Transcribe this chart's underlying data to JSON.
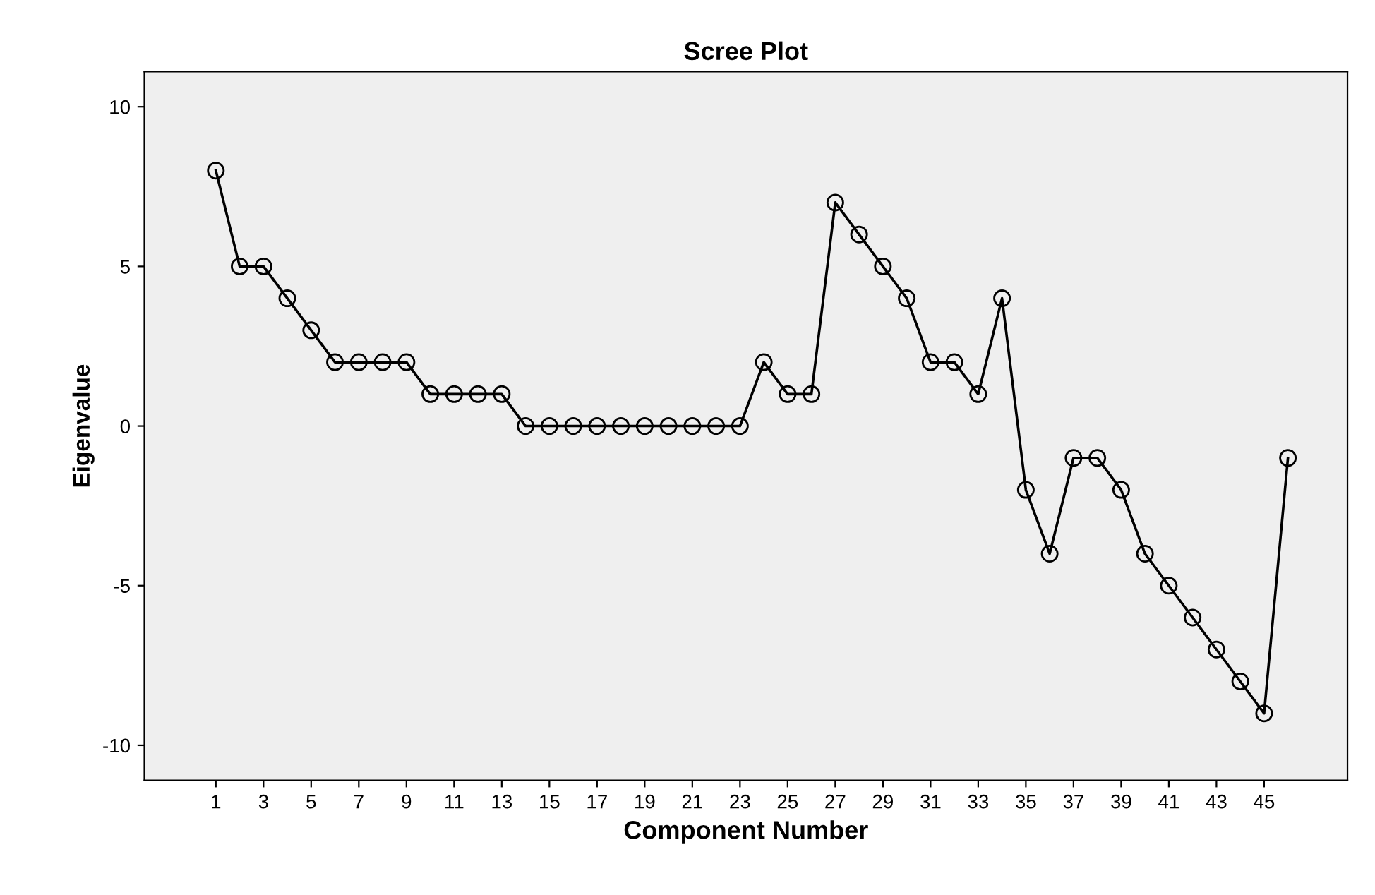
{
  "chart_data": {
    "type": "line",
    "title": "Scree Plot",
    "xlabel": "Component Number",
    "ylabel": "Eigenvalue",
    "x": [
      1,
      2,
      3,
      4,
      5,
      6,
      7,
      8,
      9,
      10,
      11,
      12,
      13,
      14,
      15,
      16,
      17,
      18,
      19,
      20,
      21,
      22,
      23,
      24,
      25,
      26,
      27,
      28,
      29,
      30,
      31,
      32,
      33,
      34,
      35,
      36,
      37,
      38,
      39,
      40,
      41,
      42,
      43,
      44,
      45,
      46
    ],
    "values": [
      8,
      5,
      5,
      4,
      3,
      2,
      2,
      2,
      2,
      1,
      1,
      1,
      1,
      0,
      0,
      0,
      0,
      0,
      0,
      0,
      0,
      0,
      0,
      2,
      1,
      1,
      7,
      6,
      5,
      4,
      2,
      2,
      1,
      4,
      -2,
      -4,
      -1,
      -1,
      -2,
      -4,
      -5,
      -6,
      -7,
      -8,
      -9,
      -1
    ],
    "color": "#000000",
    "marker": "circle",
    "line_style": "solid",
    "grid": false,
    "legend": false,
    "xlim": [
      -2,
      48.5
    ],
    "xticks": [
      1,
      3,
      5,
      7,
      9,
      11,
      13,
      15,
      17,
      19,
      21,
      23,
      25,
      27,
      29,
      31,
      33,
      35,
      37,
      39,
      41,
      43,
      45
    ],
    "ylim": [
      -11.1,
      11.1
    ],
    "yticks": [
      -10,
      -5,
      0,
      5,
      10
    ]
  }
}
